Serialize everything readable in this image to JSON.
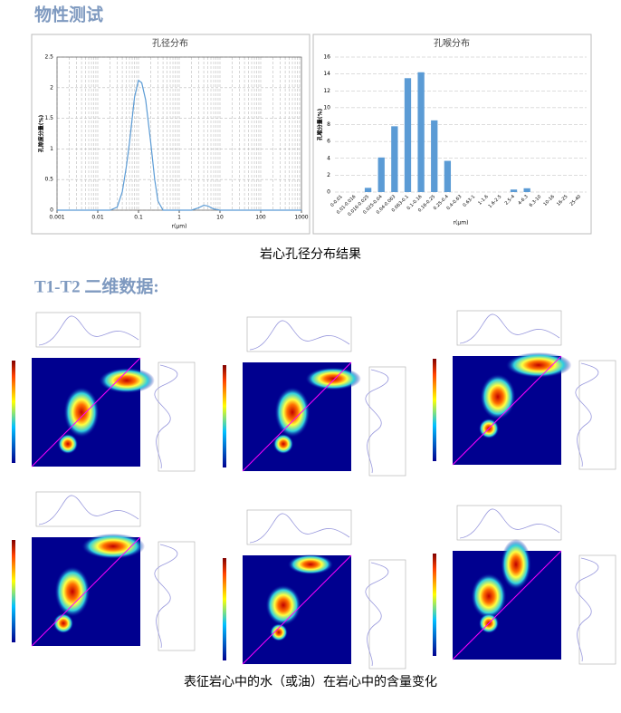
{
  "heading": "物性测试",
  "chart_data": [
    {
      "type": "line",
      "title": "孔径分布",
      "x_label": "r(μm)",
      "y_label": "孔隙度分量(%)",
      "log_x": true,
      "grid": true,
      "color": "#5b9bd5",
      "x": [
        0.001,
        0.01,
        0.02,
        0.03,
        0.04,
        0.05,
        0.06,
        0.07,
        0.08,
        0.1,
        0.12,
        0.15,
        0.2,
        0.25,
        0.3,
        0.4,
        1,
        2,
        3,
        4,
        5,
        7,
        10,
        100,
        1000
      ],
      "values": [
        0,
        0,
        0,
        0.05,
        0.3,
        0.7,
        1.1,
        1.5,
        1.85,
        2.12,
        2.08,
        1.8,
        1.1,
        0.5,
        0.15,
        0,
        0,
        0,
        0.04,
        0.08,
        0.07,
        0.02,
        0,
        0,
        0
      ],
      "xlim": [
        0.001,
        1000
      ],
      "xticks": [
        0.001,
        0.01,
        0.1,
        1,
        10,
        100,
        1000
      ],
      "ylim": [
        0,
        2.5
      ],
      "yticks": [
        0,
        0.5,
        1,
        1.5,
        2,
        2.5
      ]
    },
    {
      "type": "bar",
      "title": "孔喉分布",
      "x_label": "r(μm)",
      "y_label": "孔喉分量(%)",
      "grid": true,
      "color": "#5b9bd5",
      "categories": [
        "0-0.01",
        "0.01-0.016",
        "0.016-0.025",
        "0.025-0.04",
        "0.04-0.063",
        "0.063-0.1",
        "0.1-0.16",
        "0.16-0.25",
        "0.25-0.4",
        "0.4-0.63",
        "0.63-1",
        "1-1.6",
        "1.6-2.5",
        "2.5-4",
        "4-6.3",
        "6.3-10",
        "10-16",
        "16-25",
        "25-40"
      ],
      "values": [
        0,
        0,
        0.5,
        4.1,
        7.8,
        13.5,
        14.2,
        8.5,
        3.7,
        0,
        0,
        0,
        0,
        0.3,
        0.45,
        0,
        0,
        0,
        0
      ],
      "ylim": [
        0,
        16
      ],
      "yticks": [
        0,
        2,
        4,
        6,
        8,
        10,
        12,
        14,
        16
      ]
    }
  ],
  "caption1": "岩心孔径分布结果",
  "heading2": "T1-T2 二维数据:",
  "caption2": "表征岩心中的水（或油）在岩心中的含量变化"
}
